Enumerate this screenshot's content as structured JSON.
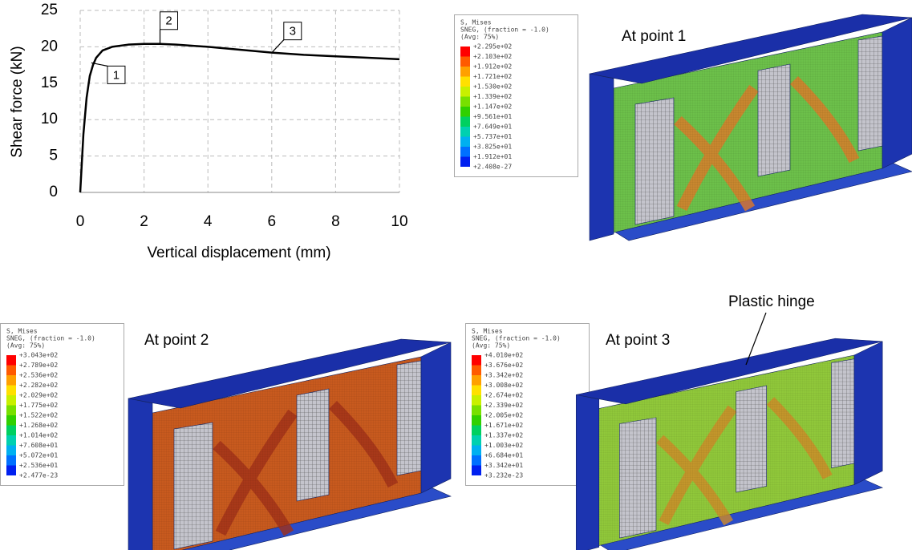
{
  "chart_data": {
    "type": "line",
    "x_label": "Vertical displacement (mm)",
    "y_label": "Shear force (kN)",
    "x": [
      0,
      0.1,
      0.2,
      0.3,
      0.4,
      0.5,
      0.7,
      1,
      1.5,
      2,
      2.5,
      3,
      4,
      5,
      6,
      7,
      8,
      9,
      10
    ],
    "series": [
      {
        "color": "#000000",
        "values": [
          0,
          8,
          13,
          16,
          17.5,
          18.5,
          19.5,
          20,
          20.3,
          20.4,
          20.4,
          20.3,
          20,
          19.6,
          19.2,
          18.9,
          18.7,
          18.5,
          18.3
        ]
      }
    ],
    "xlim": [
      0,
      10
    ],
    "xticks": [
      0,
      2,
      4,
      6,
      8,
      10
    ],
    "ylim": [
      0,
      25
    ],
    "yticks": [
      0,
      5,
      10,
      15,
      20,
      25
    ],
    "grid": true,
    "annotations": [
      {
        "text": "1",
        "x": 0.35,
        "y": 17.8
      },
      {
        "text": "2",
        "x": 2.5,
        "y": 20.4
      },
      {
        "text": "3",
        "x": 6,
        "y": 19.2
      }
    ]
  },
  "panels": [
    {
      "title": "At point 1",
      "legend": {
        "header": [
          "S, Mises",
          "SNEG, (fraction = -1.0)",
          "(Avg: 75%)"
        ],
        "levels": [
          "+2.295e+02",
          "+2.103e+02",
          "+1.912e+02",
          "+1.721e+02",
          "+1.530e+02",
          "+1.339e+02",
          "+1.147e+02",
          "+9.561e+01",
          "+7.649e+01",
          "+5.737e+01",
          "+3.825e+01",
          "+1.912e+01",
          "+2.408e-27"
        ]
      }
    },
    {
      "title": "At point 2",
      "legend": {
        "header": [
          "S, Mises",
          "SNEG, (fraction = -1.0)",
          "(Avg: 75%)"
        ],
        "levels": [
          "+3.043e+02",
          "+2.789e+02",
          "+2.536e+02",
          "+2.282e+02",
          "+2.029e+02",
          "+1.775e+02",
          "+1.522e+02",
          "+1.268e+02",
          "+1.014e+02",
          "+7.608e+01",
          "+5.072e+01",
          "+2.536e+01",
          "+2.477e-23"
        ]
      }
    },
    {
      "title": "At point 3",
      "annotation": "Plastic hinge",
      "legend": {
        "header": [
          "S, Mises",
          "SNEG, (fraction = -1.0)",
          "(Avg: 75%)"
        ],
        "levels": [
          "+4.010e+02",
          "+3.676e+02",
          "+3.342e+02",
          "+3.008e+02",
          "+2.674e+02",
          "+2.339e+02",
          "+2.005e+02",
          "+1.671e+02",
          "+1.337e+02",
          "+1.003e+02",
          "+6.684e+01",
          "+3.342e+01",
          "+3.232e-23"
        ]
      }
    }
  ]
}
